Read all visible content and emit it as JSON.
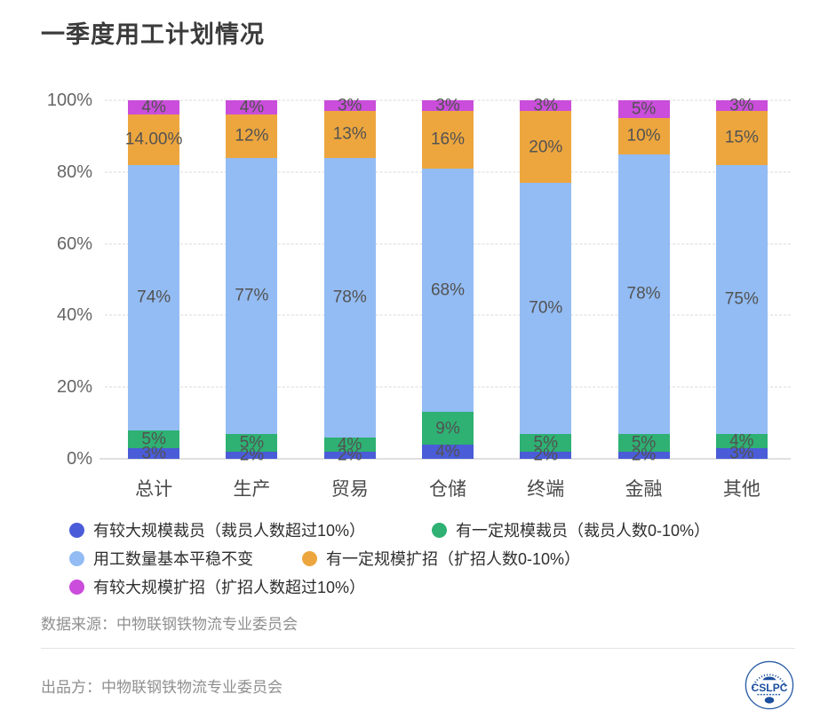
{
  "chart_data": {
    "type": "bar",
    "stacked": true,
    "title": "一季度用工计划情况",
    "categories": [
      "总计",
      "生产",
      "贸易",
      "仓储",
      "终端",
      "金融",
      "其他"
    ],
    "series": [
      {
        "name": "有较大规模裁员（裁员人数超过10%）",
        "color": "#4a5cd8",
        "values": [
          3,
          2,
          2,
          4,
          2,
          2,
          3
        ],
        "labels": [
          "3%",
          "2%",
          "2%",
          "4%",
          "2%",
          "2%",
          "3%"
        ]
      },
      {
        "name": "有一定规模裁员（裁员人数0-10%）",
        "color": "#2eb173",
        "values": [
          5,
          5,
          4,
          9,
          5,
          5,
          4
        ],
        "labels": [
          "5%",
          "5%",
          "4%",
          "9%",
          "5%",
          "5%",
          "4%"
        ]
      },
      {
        "name": "用工数量基本平稳不变",
        "color": "#93bcf4",
        "values": [
          74,
          77,
          78,
          68,
          70,
          78,
          75
        ],
        "labels": [
          "74%",
          "77%",
          "78%",
          "68%",
          "70%",
          "78%",
          "75%"
        ]
      },
      {
        "name": "有一定规模扩招（扩招人数0-10%）",
        "color": "#eda63e",
        "values": [
          14,
          12,
          13,
          16,
          20,
          10,
          15
        ],
        "labels": [
          "14.00%",
          "12%",
          "13%",
          "16%",
          "20%",
          "10%",
          "15%"
        ]
      },
      {
        "name": "有较大规模扩招（扩招人数超过10%）",
        "color": "#ca4ddb",
        "values": [
          4,
          4,
          3,
          3,
          3,
          5,
          3
        ],
        "labels": [
          "4%",
          "4%",
          "3%",
          "3%",
          "3%",
          "5%",
          "3%"
        ]
      }
    ],
    "y_ticks": [
      {
        "value": 0,
        "label": "0%"
      },
      {
        "value": 20,
        "label": "20%"
      },
      {
        "value": 40,
        "label": "40%"
      },
      {
        "value": 60,
        "label": "60%"
      },
      {
        "value": 80,
        "label": "80%"
      },
      {
        "value": 100,
        "label": "100%"
      }
    ],
    "ylim": [
      0,
      100
    ],
    "grid": "horizontal-dashed",
    "legend_position": "bottom-left"
  },
  "footer": {
    "source": "数据来源：中物联钢铁物流专业委员会",
    "producer": "出品方：中物联钢铁物流专业委员会",
    "logo_text": "CSLPC"
  }
}
